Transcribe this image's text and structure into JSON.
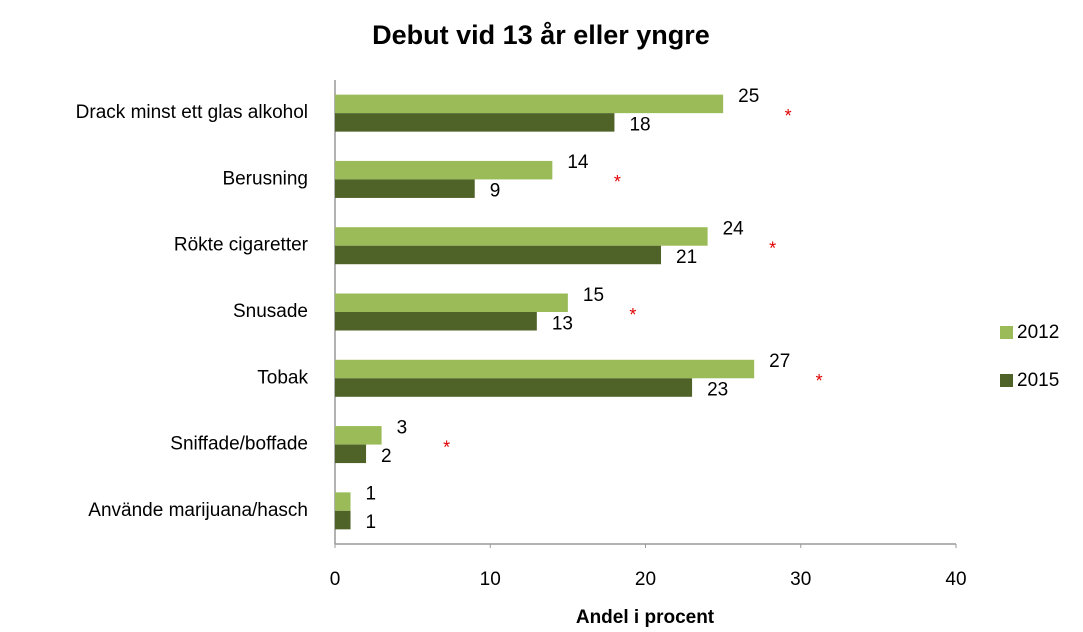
{
  "chart_data": {
    "type": "bar",
    "orientation": "horizontal",
    "title": "Debut vid 13 år eller yngre",
    "x_label": "Andel i procent",
    "categories": [
      "Drack minst ett glas alkohol",
      "Berusning",
      "Rökte cigaretter",
      "Snusade",
      "Tobak",
      "Sniffade/boffade",
      "Använde marijuana/hasch"
    ],
    "series": [
      {
        "name": "2012",
        "color": "#9bbb59",
        "values": [
          25,
          14,
          24,
          15,
          27,
          3,
          1
        ]
      },
      {
        "name": "2015",
        "color": "#4f6228",
        "values": [
          18,
          9,
          21,
          13,
          23,
          2,
          1
        ]
      }
    ],
    "significance": [
      "*",
      "*",
      "*",
      "*",
      "*",
      "*",
      null
    ],
    "xlim": [
      0,
      40
    ],
    "xticks": [
      0,
      10,
      20,
      30,
      40
    ],
    "grid": false,
    "legend": "right"
  }
}
